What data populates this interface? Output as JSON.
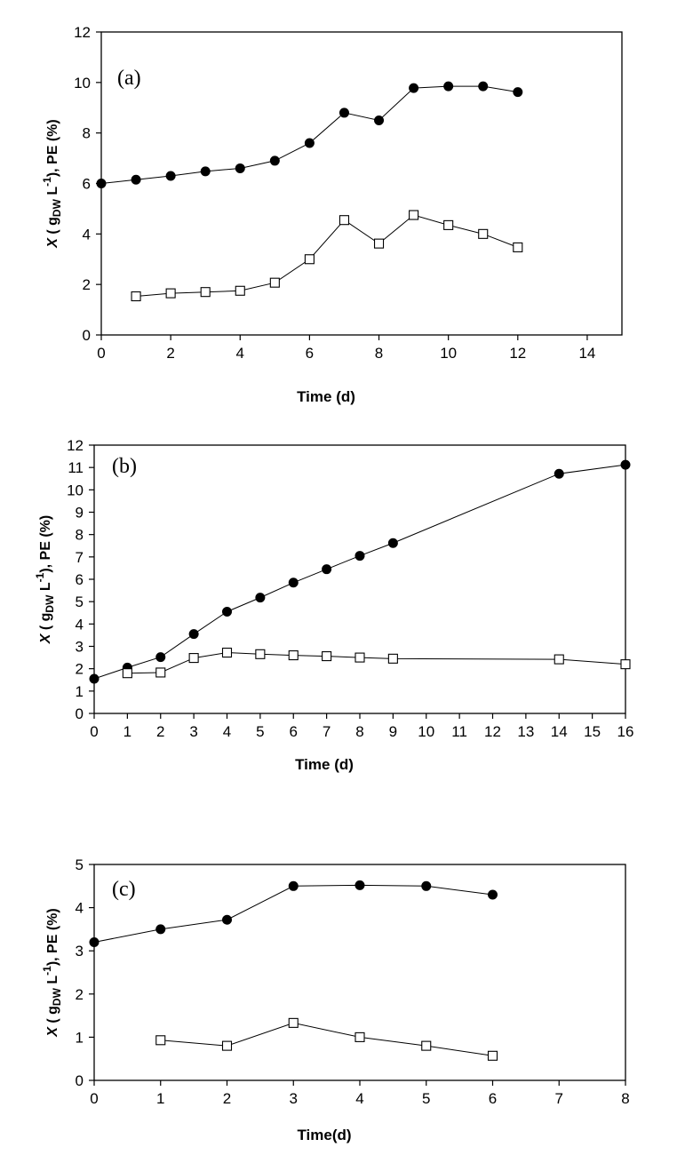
{
  "chart_data": [
    {
      "type": "line",
      "panel_label": "(a)",
      "xlabel": "Time (d)",
      "ylabel": {
        "var": "X",
        "open": " ( g",
        "sub": "DW",
        "unit": " L",
        "sup": "-1",
        "close": "), PE (%)"
      },
      "xlim": [
        0,
        15
      ],
      "ylim": [
        0,
        12
      ],
      "xticks": [
        0,
        2,
        4,
        6,
        8,
        10,
        12,
        14
      ],
      "yticks": [
        0,
        2,
        4,
        6,
        8,
        10,
        12
      ],
      "grid": false,
      "series": [
        {
          "marker": "filled-circle",
          "x": [
            0,
            1,
            2,
            3,
            4,
            5,
            6,
            7,
            8,
            9,
            10,
            11,
            12
          ],
          "y": [
            6.0,
            6.15,
            6.3,
            6.48,
            6.6,
            6.9,
            7.6,
            8.8,
            8.5,
            9.78,
            9.85,
            9.85,
            9.62
          ]
        },
        {
          "marker": "open-square",
          "x": [
            1,
            2,
            3,
            4,
            5,
            6,
            7,
            8,
            9,
            10,
            11,
            12
          ],
          "y": [
            1.53,
            1.65,
            1.7,
            1.75,
            2.07,
            3.0,
            4.55,
            3.62,
            4.75,
            4.35,
            4.0,
            3.47
          ]
        }
      ]
    },
    {
      "type": "line",
      "panel_label": "(b)",
      "xlabel": "Time (d)",
      "ylabel": {
        "var": "X",
        "open": " ( g",
        "sub": "DW",
        "unit": " L",
        "sup": "-1",
        "close": "), PE (%)"
      },
      "xlim": [
        0,
        16
      ],
      "ylim": [
        0,
        12
      ],
      "xticks": [
        0,
        1,
        2,
        3,
        4,
        5,
        6,
        7,
        8,
        9,
        10,
        11,
        12,
        13,
        14,
        15,
        16
      ],
      "yticks": [
        0,
        1,
        2,
        3,
        4,
        5,
        6,
        7,
        8,
        9,
        10,
        11,
        12
      ],
      "grid": false,
      "series": [
        {
          "marker": "filled-circle",
          "x": [
            0,
            1,
            2,
            3,
            4,
            5,
            6,
            7,
            8,
            9,
            14,
            16
          ],
          "y": [
            1.55,
            2.05,
            2.52,
            3.55,
            4.55,
            5.18,
            5.85,
            6.45,
            7.05,
            7.62,
            10.72,
            11.12
          ]
        },
        {
          "marker": "open-square",
          "x": [
            1,
            2,
            3,
            4,
            5,
            6,
            7,
            8,
            9,
            14,
            16
          ],
          "y": [
            1.8,
            1.83,
            2.48,
            2.72,
            2.65,
            2.6,
            2.56,
            2.5,
            2.45,
            2.42,
            2.2
          ]
        }
      ]
    },
    {
      "type": "line",
      "panel_label": "(c)",
      "xlabel": "Time(d)",
      "ylabel": {
        "var": "X",
        "open": " ( g",
        "sub": "DW",
        "unit": " L",
        "sup": "-1",
        "close": "), PE (%)"
      },
      "xlim": [
        0,
        8
      ],
      "ylim": [
        0,
        5
      ],
      "xticks": [
        0,
        1,
        2,
        3,
        4,
        5,
        6,
        7,
        8
      ],
      "yticks": [
        0,
        1,
        2,
        3,
        4,
        5
      ],
      "grid": false,
      "series": [
        {
          "marker": "filled-circle",
          "x": [
            0,
            1,
            2,
            3,
            4,
            5,
            6
          ],
          "y": [
            3.2,
            3.5,
            3.72,
            4.5,
            4.52,
            4.5,
            4.3
          ]
        },
        {
          "marker": "open-square",
          "x": [
            1,
            2,
            3,
            4,
            5,
            6
          ],
          "y": [
            0.93,
            0.8,
            1.33,
            1.0,
            0.8,
            0.57
          ]
        }
      ]
    }
  ]
}
